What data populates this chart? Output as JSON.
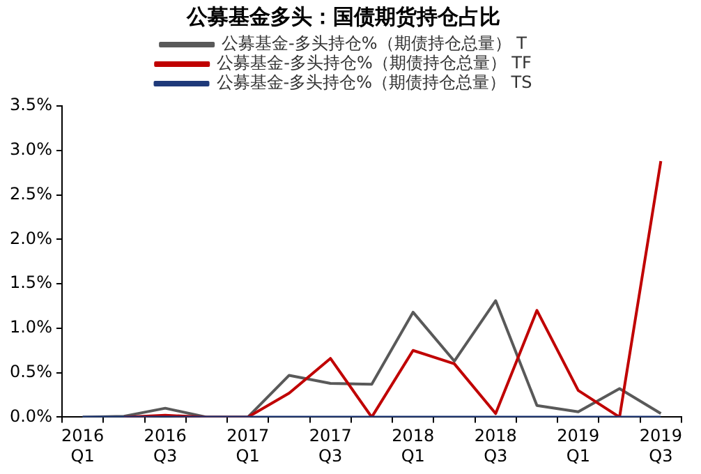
{
  "chart_data": {
    "type": "line",
    "title": "公募基金多头：国债期货持仓占比",
    "categories": [
      "2016\nQ1",
      null,
      "2016\nQ3",
      null,
      "2017\nQ1",
      null,
      "2017\nQ3",
      null,
      "2018\nQ1",
      null,
      "2018\nQ3",
      null,
      "2019\nQ1",
      null,
      "2019\nQ3"
    ],
    "series": [
      {
        "name": "公募基金-多头持仓%（期债持仓总量） T",
        "color": "#595959",
        "values": [
          0,
          0.01,
          0.1,
          0,
          0,
          0.47,
          0.38,
          0.37,
          1.18,
          0.63,
          1.31,
          0.13,
          0.06,
          0.32,
          0.04
        ]
      },
      {
        "name": "公募基金-多头持仓%（期债持仓总量） TF",
        "color": "#c00000",
        "values": [
          null,
          0,
          0.02,
          0,
          0,
          0.27,
          0.66,
          0,
          0.75,
          0.6,
          0.04,
          1.2,
          0.3,
          0,
          2.88
        ]
      },
      {
        "name": "公募基金-多头持仓%（期债持仓总量） TS",
        "color": "#1f3a7a",
        "values": [
          0,
          0,
          0,
          0,
          0,
          0,
          0,
          0,
          0,
          0,
          0,
          0,
          0,
          0,
          0
        ]
      }
    ],
    "ylim": [
      0,
      3.5
    ],
    "yticks": [
      {
        "value": 0,
        "label": "0.0%"
      },
      {
        "value": 0.5,
        "label": "0.5%"
      },
      {
        "value": 1,
        "label": "1.0%"
      },
      {
        "value": 1.5,
        "label": "1.5%"
      },
      {
        "value": 2,
        "label": "2.0%"
      },
      {
        "value": 2.5,
        "label": "2.5%"
      },
      {
        "value": 3,
        "label": "3.0%"
      },
      {
        "value": 3.5,
        "label": "3.5%"
      }
    ],
    "grid": false,
    "legend": "top",
    "marker": "none",
    "line_style": "solid"
  }
}
